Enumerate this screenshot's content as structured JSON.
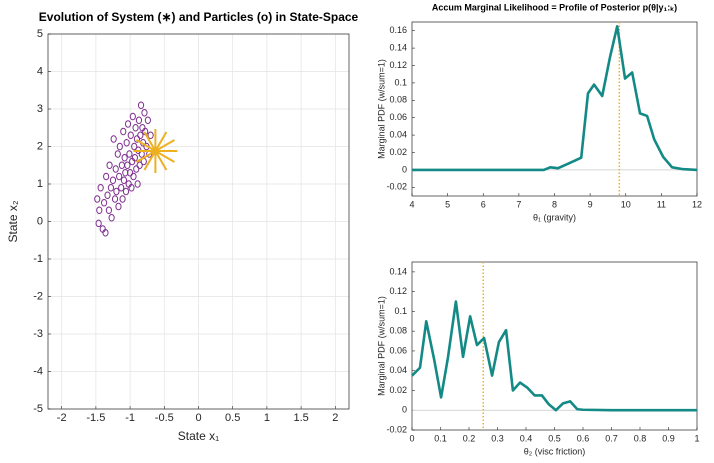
{
  "chart_data": [
    {
      "type": "scatter",
      "title": "Evolution of System (∗) and Particles (o) in State-Space",
      "x_label": "State x₁",
      "y_label": "State x₂",
      "xlim": [
        -2.2,
        2.2
      ],
      "xticks": [
        -2,
        -1.5,
        -1,
        -0.5,
        0,
        0.5,
        1,
        1.5,
        2
      ],
      "ylim": [
        -5,
        5
      ],
      "yticks": [
        -5,
        -4,
        -3,
        -2,
        -1,
        0,
        1,
        2,
        3,
        4,
        5
      ],
      "grid": true,
      "color": "#7E2F8E",
      "x": [
        -1.48,
        -1.46,
        -1.45,
        -1.43,
        -1.4,
        -1.38,
        -1.36,
        -1.35,
        -1.33,
        -1.31,
        -1.3,
        -1.28,
        -1.27,
        -1.25,
        -1.24,
        -1.22,
        -1.21,
        -1.2,
        -1.18,
        -1.17,
        -1.16,
        -1.15,
        -1.13,
        -1.12,
        -1.11,
        -1.1,
        -1.09,
        -1.08,
        -1.07,
        -1.06,
        -1.05,
        -1.04,
        -1.03,
        -1.02,
        -1.01,
        -1.0,
        -0.99,
        -0.98,
        -0.97,
        -0.96,
        -0.95,
        -0.94,
        -0.93,
        -0.92,
        -0.91,
        -0.9,
        -0.89,
        -0.88,
        -0.87,
        -0.86,
        -0.85,
        -0.84,
        -0.83,
        -0.82,
        -0.81,
        -0.8,
        -0.79,
        -0.78,
        -0.76,
        -0.74,
        -0.72,
        -0.7
      ],
      "y": [
        0.6,
        -0.05,
        0.3,
        0.9,
        -0.2,
        0.5,
        -0.3,
        1.2,
        0.7,
        0.3,
        1.5,
        0.9,
        0.1,
        1.1,
        2.2,
        0.6,
        1.4,
        0.8,
        1.8,
        0.4,
        1.2,
        2.0,
        0.9,
        1.5,
        0.6,
        2.4,
        1.1,
        1.7,
        1.3,
        0.8,
        2.1,
        1.5,
        2.6,
        1.0,
        1.8,
        1.3,
        2.3,
        0.9,
        1.6,
        2.8,
        1.2,
        2.0,
        1.7,
        2.5,
        1.4,
        2.2,
        1.0,
        1.9,
        2.7,
        1.5,
        2.3,
        3.1,
        1.8,
        2.5,
        2.1,
        1.6,
        2.9,
        2.4,
        2.0,
        2.7,
        1.8,
        2.3
      ],
      "system": {
        "x": -0.63,
        "y": 1.88,
        "color": "#EDB120"
      }
    },
    {
      "type": "line",
      "title": "Accum Marginal Likelihood = Profile of Posterior p(θ|y₁:ₖ)",
      "x_label": "θ₁ (gravity)",
      "y_label": "Marginal PDF (w/sum=1)",
      "xlim": [
        4,
        12
      ],
      "xticks": [
        4,
        5,
        6,
        7,
        8,
        9,
        10,
        11,
        12
      ],
      "ylim": [
        -0.03,
        0.17
      ],
      "yticks": [
        -0.02,
        0,
        0.02,
        0.04,
        0.06,
        0.08,
        0.1,
        0.12,
        0.14,
        0.16
      ],
      "zero_line": true,
      "color": "#138A86",
      "x": [
        4,
        5,
        6,
        7,
        7.7,
        7.88,
        8.1,
        8.43,
        8.75,
        8.94,
        9.11,
        9.34,
        9.56,
        9.76,
        9.98,
        10.18,
        10.4,
        10.6,
        10.8,
        11.05,
        11.3,
        11.58,
        12
      ],
      "values": [
        0,
        0,
        0,
        0,
        0,
        0.003,
        0.002,
        0.008,
        0.014,
        0.088,
        0.098,
        0.085,
        0.13,
        0.165,
        0.105,
        0.112,
        0.065,
        0.062,
        0.035,
        0.015,
        0.003,
        0.001,
        0
      ],
      "reference_x": 9.82,
      "reference_color": "#EDB120"
    },
    {
      "type": "line",
      "x_label": "θ₂ (visc friction)",
      "y_label": "Marginal PDF (w/sum=1)",
      "xlim": [
        0,
        1
      ],
      "xticks": [
        0,
        0.1,
        0.2,
        0.3,
        0.4,
        0.5,
        0.6,
        0.7,
        0.8,
        0.9,
        1
      ],
      "ylim": [
        -0.02,
        0.15
      ],
      "yticks": [
        -0.02,
        0,
        0.02,
        0.04,
        0.06,
        0.08,
        0.1,
        0.12,
        0.14
      ],
      "zero_line": true,
      "color": "#138A86",
      "x": [
        0,
        0.028,
        0.05,
        0.078,
        0.102,
        0.126,
        0.154,
        0.179,
        0.204,
        0.228,
        0.253,
        0.281,
        0.305,
        0.33,
        0.354,
        0.379,
        0.404,
        0.43,
        0.456,
        0.48,
        0.505,
        0.53,
        0.555,
        0.58,
        0.6,
        0.7,
        0.8,
        0.9,
        1
      ],
      "values": [
        0.035,
        0.043,
        0.09,
        0.051,
        0.013,
        0.053,
        0.11,
        0.054,
        0.095,
        0.066,
        0.073,
        0.035,
        0.069,
        0.081,
        0.02,
        0.028,
        0.023,
        0.015,
        0.015,
        0.006,
        0.0,
        0.007,
        0.009,
        0.001,
        0.0005,
        0,
        0,
        0,
        0
      ],
      "reference_x": 0.25,
      "reference_color": "#EDB120"
    }
  ]
}
